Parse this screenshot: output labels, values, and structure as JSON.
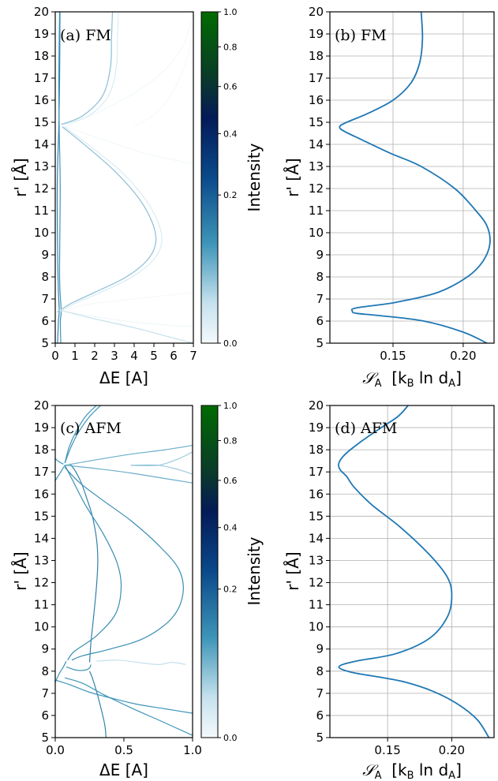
{
  "chart_data": [
    {
      "type": "line",
      "panel": "a",
      "annotation": "(a) FM",
      "xlabel": "ΔE [A]",
      "ylabel": "r' [Å]",
      "xlim": [
        0,
        7
      ],
      "ylim": [
        5,
        20
      ],
      "xticks": [
        0,
        1,
        2,
        3,
        4,
        5,
        6,
        7
      ],
      "xtick_labels": [
        "0",
        "1",
        "2",
        "3",
        "4",
        "5",
        "6",
        "7"
      ],
      "yticks": [
        5,
        6,
        7,
        8,
        9,
        10,
        11,
        12,
        13,
        14,
        15,
        16,
        17,
        18,
        19,
        20
      ],
      "ytick_labels": [
        "5",
        "6",
        "7",
        "8",
        "9",
        "10",
        "11",
        "12",
        "13",
        "14",
        "15",
        "16",
        "17",
        "18",
        "19",
        "20"
      ],
      "colorbar": {
        "label": "Intensity",
        "ticks": [
          0.0,
          0.2,
          0.4,
          0.6,
          0.8,
          1.0
        ],
        "tick_labels": [
          "0.0",
          "0.2",
          "0.4",
          "0.6",
          "0.8",
          "1.0"
        ]
      },
      "series": [
        {
          "intensity": 0.35,
          "x": [
            0.12,
            0.16,
            0.2,
            0.14,
            0.1,
            0.18,
            0.22,
            0.24
          ],
          "y": [
            5,
            6,
            6.5,
            8,
            12,
            14.8,
            17,
            20
          ]
        },
        {
          "intensity": 0.3,
          "x": [
            0.28,
            0.26,
            0.3,
            0.22,
            0.25,
            0.2,
            0.18,
            0.22
          ],
          "y": [
            5,
            6,
            6.5,
            8,
            12,
            14.8,
            17,
            20
          ]
        },
        {
          "intensity": 0.22,
          "x": [
            0.1,
            0.8,
            2.0,
            3.6,
            4.7,
            5.1,
            4.9,
            4.2,
            3.0,
            1.6,
            0.35
          ],
          "y": [
            6.4,
            6.8,
            7.3,
            8.0,
            8.8,
            9.6,
            10.5,
            11.6,
            12.8,
            13.9,
            14.8
          ]
        },
        {
          "intensity": 0.12,
          "x": [
            0.2,
            1.0,
            2.3,
            3.9,
            5.0,
            5.4,
            5.2,
            4.5,
            3.3,
            1.8,
            0.45
          ],
          "y": [
            6.4,
            6.8,
            7.3,
            8.0,
            8.8,
            9.6,
            10.5,
            11.6,
            12.8,
            13.9,
            14.8
          ]
        },
        {
          "intensity": 0.22,
          "x": [
            0.3,
            1.4,
            2.4,
            2.8,
            2.85,
            2.9
          ],
          "y": [
            14.9,
            15.3,
            16.2,
            17.5,
            18.8,
            20
          ]
        },
        {
          "intensity": 0.12,
          "x": [
            0.45,
            1.7,
            2.7,
            3.1,
            3.15,
            3.2
          ],
          "y": [
            14.9,
            15.3,
            16.2,
            17.5,
            18.8,
            20
          ]
        },
        {
          "intensity": 0.04,
          "x": [
            0.5,
            2.5,
            4.5,
            5.8,
            6.5,
            6.8,
            7.0
          ],
          "y": [
            14.8,
            15.6,
            16.6,
            17.6,
            18.5,
            19.3,
            20
          ]
        },
        {
          "intensity": 0.04,
          "x": [
            0.5,
            2.5,
            4.5,
            6.0,
            7.0
          ],
          "y": [
            14.8,
            14.2,
            13.6,
            13.3,
            13.1
          ]
        },
        {
          "intensity": 0.03,
          "x": [
            4.0,
            5.2,
            6.1,
            6.7,
            7.0
          ],
          "y": [
            14.8,
            15.5,
            16.6,
            18.0,
            19.5
          ]
        },
        {
          "intensity": 0.15,
          "x": [
            0.2,
            2.0,
            4.0,
            5.7,
            7.0
          ],
          "y": [
            6.5,
            6.1,
            5.7,
            5.3,
            5.0
          ]
        },
        {
          "intensity": 0.05,
          "x": [
            0.2,
            2.0,
            4.0,
            6.0,
            7.0
          ],
          "y": [
            6.5,
            6.2,
            5.95,
            5.8,
            5.75
          ]
        },
        {
          "intensity": 0.03,
          "x": [
            0.2,
            2.0,
            4.0,
            6.0,
            7.0
          ],
          "y": [
            6.5,
            6.8,
            7.0,
            7.2,
            7.3
          ]
        }
      ]
    },
    {
      "type": "line",
      "panel": "b",
      "annotation": "(b) FM",
      "xlabel": "S_A  [k_B ln d_A]",
      "ylabel": "r' [Å]",
      "xlim": [
        0.105,
        0.222
      ],
      "ylim": [
        5,
        20
      ],
      "grid": true,
      "xticks": [
        0.15,
        0.2
      ],
      "xtick_labels": [
        "0.15",
        "0.20"
      ],
      "yticks": [
        5,
        6,
        7,
        8,
        9,
        10,
        11,
        12,
        13,
        14,
        15,
        16,
        17,
        18,
        19,
        20
      ],
      "ytick_labels": [
        "5",
        "6",
        "7",
        "8",
        "9",
        "10",
        "11",
        "12",
        "13",
        "14",
        "15",
        "16",
        "17",
        "18",
        "19",
        "20"
      ],
      "series": [
        {
          "x": [
            0.217,
            0.2,
            0.172,
            0.14,
            0.124,
            0.121,
            0.124,
            0.152,
            0.182,
            0.203,
            0.214,
            0.219,
            0.217,
            0.209,
            0.194,
            0.17,
            0.148,
            0.128,
            0.115,
            0.112,
            0.117,
            0.132,
            0.15,
            0.163,
            0.169,
            0.171,
            0.17
          ],
          "y": [
            5.0,
            5.5,
            6.0,
            6.25,
            6.35,
            6.45,
            6.6,
            6.85,
            7.3,
            8.0,
            8.7,
            9.5,
            10.3,
            11.0,
            12.0,
            13.0,
            13.6,
            14.2,
            14.6,
            14.8,
            15.0,
            15.4,
            16.0,
            16.8,
            17.7,
            18.8,
            20.0
          ]
        }
      ]
    },
    {
      "type": "line",
      "panel": "c",
      "annotation": "(c) AFM",
      "xlabel": "ΔE [A]",
      "ylabel": "r' [Å]",
      "xlim": [
        0,
        1
      ],
      "ylim": [
        5,
        20
      ],
      "xticks": [
        0,
        0.5,
        1.0
      ],
      "xtick_labels": [
        "0.0",
        "0.5",
        "1.0"
      ],
      "yticks": [
        5,
        6,
        7,
        8,
        9,
        10,
        11,
        12,
        13,
        14,
        15,
        16,
        17,
        18,
        19,
        20
      ],
      "ytick_labels": [
        "5",
        "6",
        "7",
        "8",
        "9",
        "10",
        "11",
        "12",
        "13",
        "14",
        "15",
        "16",
        "17",
        "18",
        "19",
        "20"
      ],
      "colorbar": {
        "label": "Intensity",
        "ticks": [
          0.0,
          0.2,
          0.4,
          0.6,
          0.8,
          1.0
        ],
        "tick_labels": [
          "0.0",
          "0.2",
          "0.4",
          "0.6",
          "0.8",
          "1.0"
        ]
      },
      "series": [
        {
          "intensity": 0.35,
          "x": [
            0.37,
            0.36,
            0.33,
            0.3,
            0.27,
            0.25
          ],
          "y": [
            5.0,
            5.6,
            6.4,
            7.1,
            7.7,
            8.0
          ]
        },
        {
          "intensity": 0.35,
          "x": [
            0.25,
            0.26,
            0.28,
            0.3,
            0.31,
            0.3,
            0.27,
            0.23,
            0.19,
            0.15,
            0.11
          ],
          "y": [
            8.4,
            9.3,
            10.5,
            11.8,
            13.0,
            14.0,
            15.0,
            15.8,
            16.5,
            17.0,
            17.35
          ]
        },
        {
          "intensity": 0.32,
          "x": [
            0.09,
            0.14,
            0.3,
            0.44,
            0.48,
            0.45,
            0.35,
            0.22,
            0.12,
            0.07
          ],
          "y": [
            8.5,
            8.9,
            9.6,
            10.6,
            11.8,
            12.9,
            14.2,
            15.5,
            16.7,
            17.3
          ]
        },
        {
          "intensity": 0.32,
          "x": [
            0.12,
            0.2,
            0.4,
            0.65,
            0.85,
            0.93,
            0.9,
            0.75,
            0.55,
            0.35,
            0.18,
            0.07
          ],
          "y": [
            8.5,
            8.7,
            9.0,
            9.5,
            10.4,
            11.5,
            12.6,
            13.7,
            14.8,
            15.7,
            16.5,
            17.2
          ]
        },
        {
          "intensity": 0.3,
          "x": [
            0.0,
            0.03,
            0.06,
            0.08
          ],
          "y": [
            7.5,
            7.9,
            8.2,
            8.45
          ]
        },
        {
          "intensity": 0.3,
          "x": [
            0.08,
            0.15,
            0.22,
            0.25,
            0.26
          ],
          "y": [
            8.2,
            8.05,
            8.05,
            8.15,
            8.3
          ]
        },
        {
          "intensity": 0.3,
          "x": [
            0.07,
            0.2,
            0.35,
            0.55,
            0.75,
            1.0
          ],
          "y": [
            7.7,
            7.45,
            6.95,
            6.35,
            5.8,
            5.1
          ]
        },
        {
          "intensity": 0.3,
          "x": [
            0.0,
            0.1,
            0.25,
            0.4,
            0.6,
            0.8,
            1.0
          ],
          "y": [
            7.6,
            7.4,
            7.05,
            6.8,
            6.5,
            6.3,
            6.1
          ]
        },
        {
          "intensity": 0.3,
          "x": [
            0.07,
            0.1,
            0.15,
            0.22,
            0.3
          ],
          "y": [
            17.4,
            18.1,
            18.8,
            19.5,
            20.0
          ]
        },
        {
          "intensity": 0.3,
          "x": [
            0.07,
            0.12,
            0.18,
            0.25,
            0.33
          ],
          "y": [
            17.4,
            18.2,
            18.9,
            19.5,
            20.0
          ]
        },
        {
          "intensity": 0.3,
          "x": [
            0.0,
            0.04,
            0.07
          ],
          "y": [
            16.6,
            17.0,
            17.3
          ]
        },
        {
          "intensity": 0.3,
          "x": [
            0.0,
            0.03,
            0.06
          ],
          "y": [
            17.6,
            17.45,
            17.35
          ]
        },
        {
          "intensity": 0.25,
          "x": [
            0.07,
            0.3,
            0.55,
            0.8,
            1.0
          ],
          "y": [
            17.3,
            17.55,
            17.8,
            18.0,
            18.2
          ]
        },
        {
          "intensity": 0.25,
          "x": [
            0.07,
            0.3,
            0.55,
            0.8,
            1.0
          ],
          "y": [
            17.3,
            17.15,
            16.95,
            16.7,
            16.5
          ]
        },
        {
          "intensity": 0.2,
          "x": [
            0.55,
            0.75,
            0.9,
            1.0
          ],
          "y": [
            17.3,
            17.3,
            17.6,
            17.9
          ]
        },
        {
          "intensity": 0.2,
          "x": [
            0.55,
            0.75,
            0.9,
            1.0
          ],
          "y": [
            17.3,
            17.3,
            17.1,
            16.9
          ]
        },
        {
          "intensity": 0.15,
          "x": [
            0.3,
            0.45,
            0.6,
            0.75,
            0.85,
            0.95
          ],
          "y": [
            8.45,
            8.5,
            8.4,
            8.3,
            8.4,
            8.3
          ]
        }
      ]
    },
    {
      "type": "line",
      "panel": "d",
      "annotation": "(d) AFM",
      "xlabel": "S_A  [k_B ln d_A]",
      "ylabel": "r' [Å]",
      "xlim": [
        0.105,
        0.233
      ],
      "ylim": [
        5,
        20
      ],
      "grid": true,
      "xticks": [
        0.15,
        0.2
      ],
      "xtick_labels": [
        "0.15",
        "0.20"
      ],
      "yticks": [
        5,
        6,
        7,
        8,
        9,
        10,
        11,
        12,
        13,
        14,
        15,
        16,
        17,
        18,
        19,
        20
      ],
      "ytick_labels": [
        "5",
        "6",
        "7",
        "8",
        "9",
        "10",
        "11",
        "12",
        "13",
        "14",
        "15",
        "16",
        "17",
        "18",
        "19",
        "20"
      ],
      "series": [
        {
          "x": [
            0.229,
            0.22,
            0.205,
            0.185,
            0.164,
            0.147,
            0.122,
            0.112,
            0.125,
            0.157,
            0.183,
            0.197,
            0.2,
            0.196,
            0.182,
            0.16,
            0.138,
            0.124,
            0.118,
            0.113,
            0.112,
            0.117,
            0.13,
            0.145,
            0.158,
            0.166
          ],
          "y": [
            5.0,
            5.8,
            6.5,
            7.1,
            7.5,
            7.7,
            7.95,
            8.2,
            8.45,
            8.8,
            9.5,
            10.5,
            11.5,
            12.3,
            13.3,
            14.5,
            15.5,
            16.3,
            16.8,
            17.1,
            17.4,
            17.8,
            18.4,
            19.0,
            19.5,
            20.0
          ]
        }
      ]
    }
  ]
}
